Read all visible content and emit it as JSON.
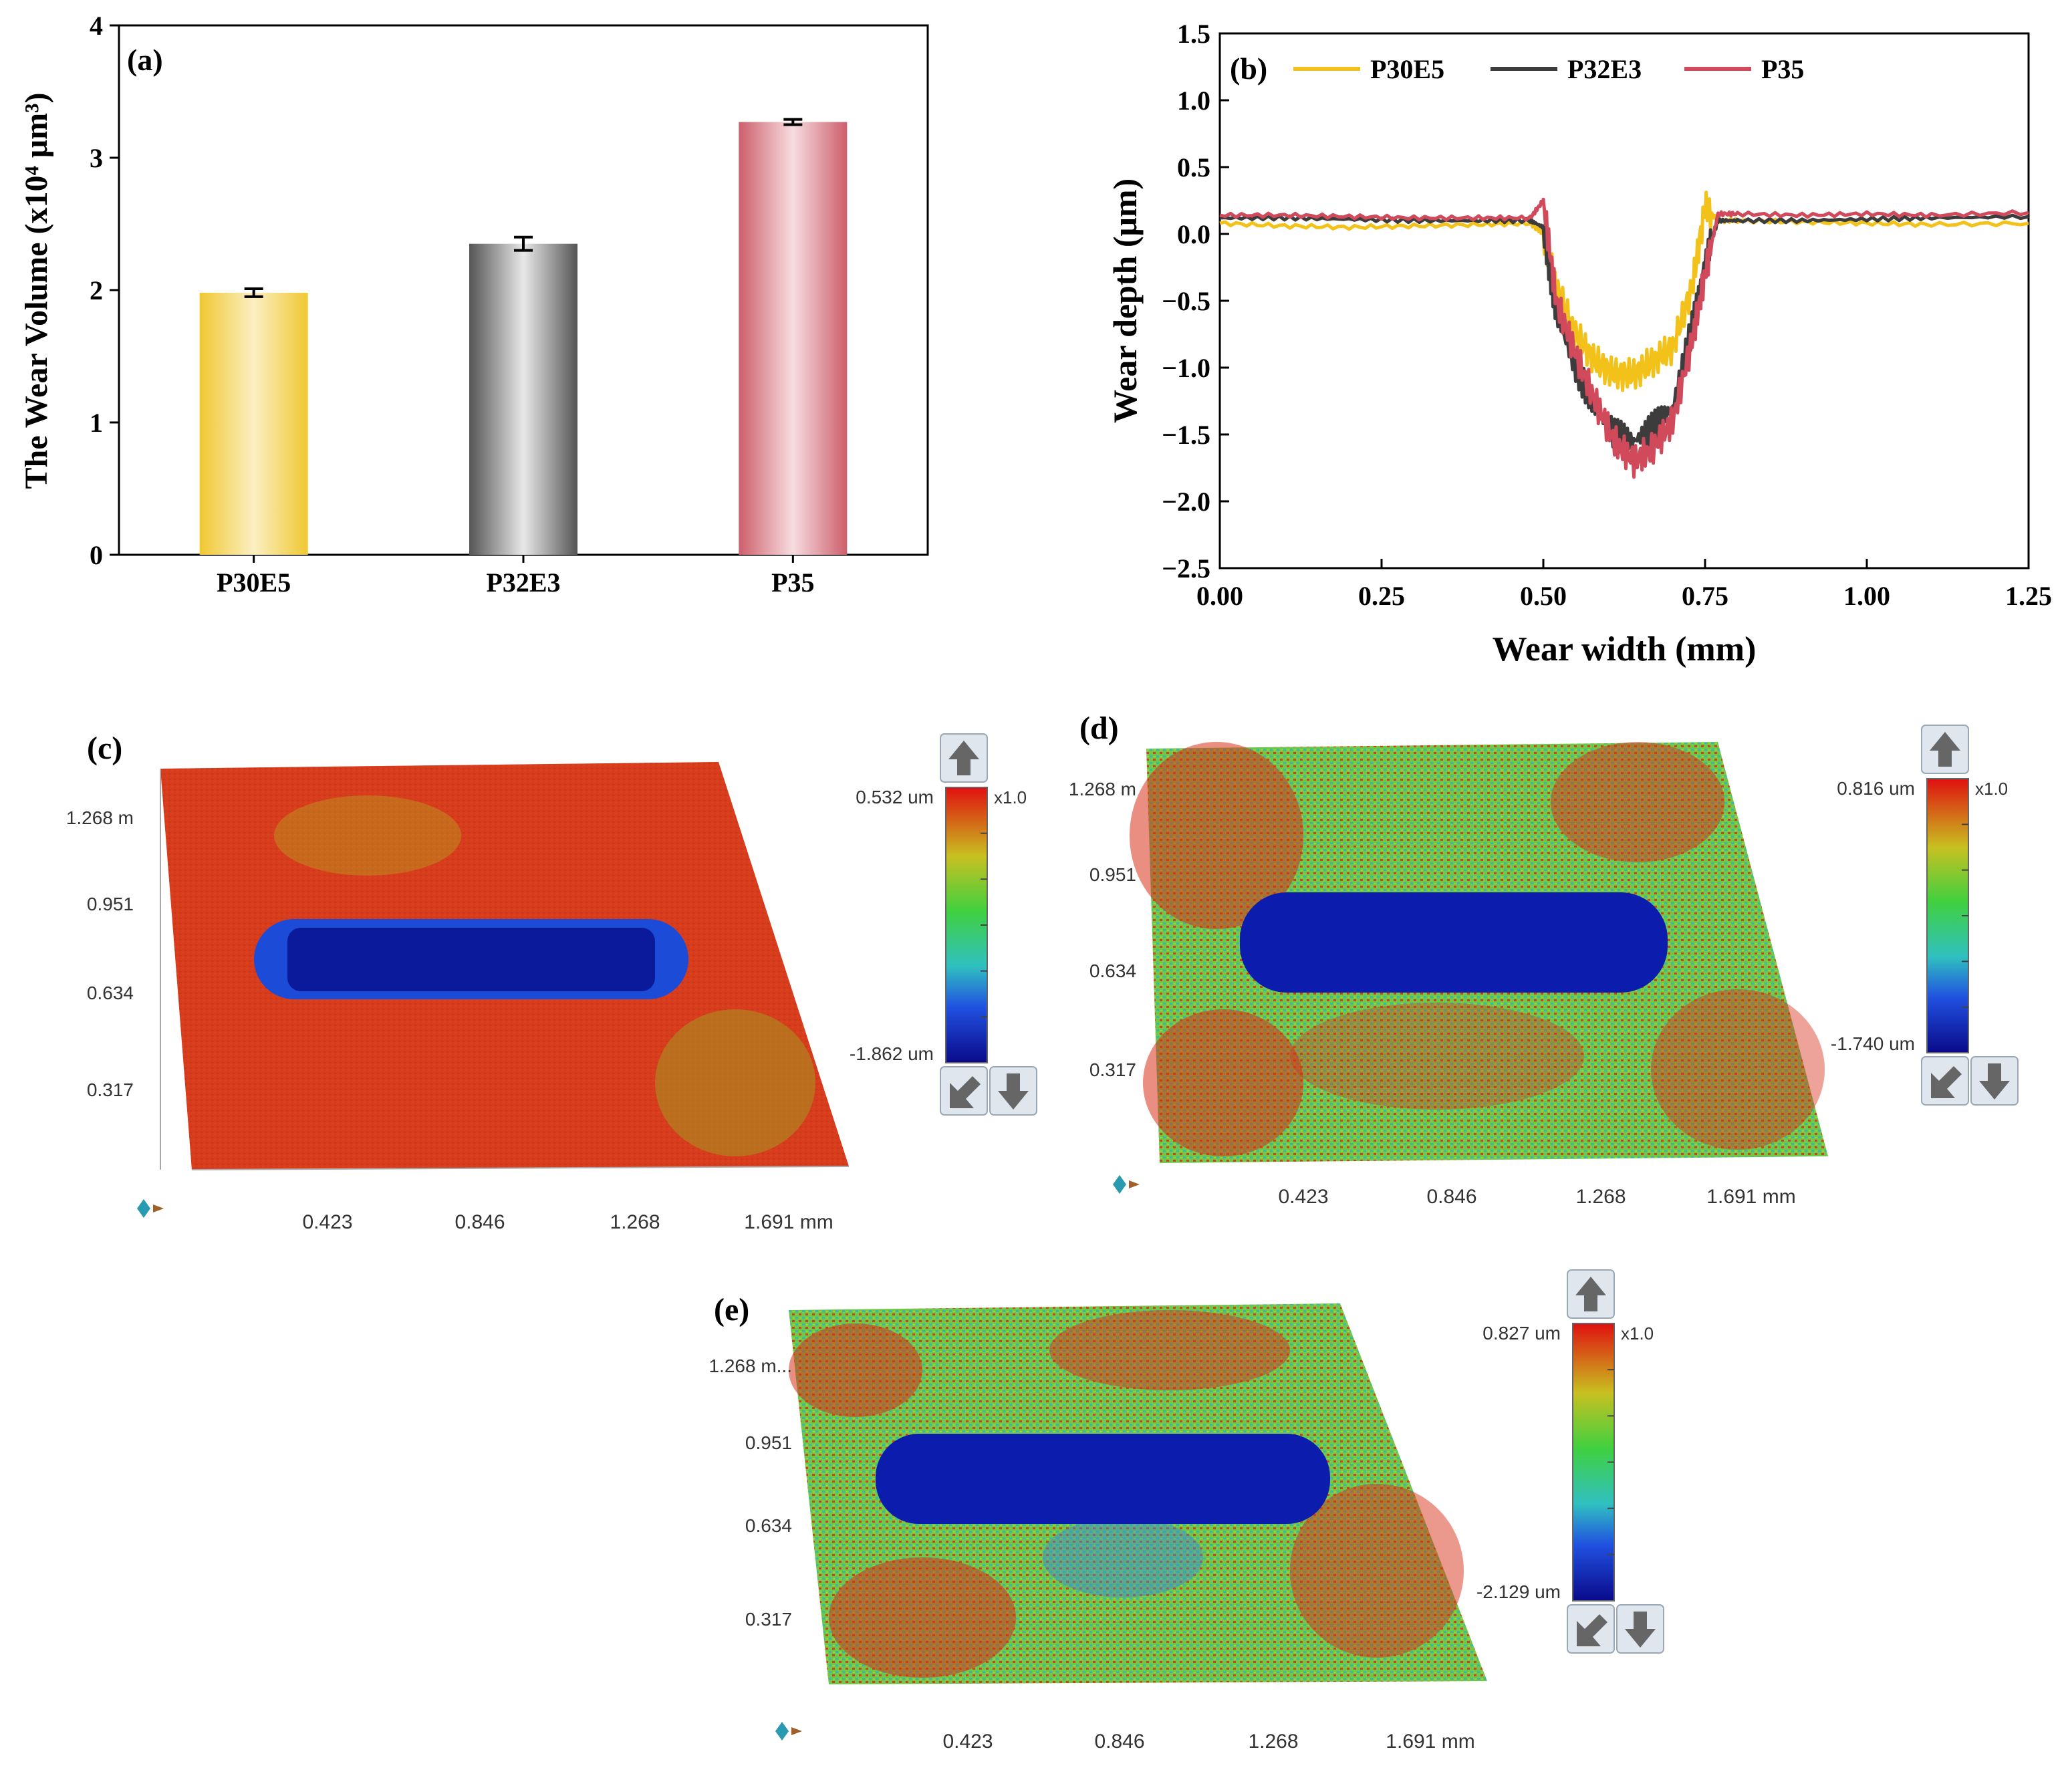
{
  "chart_data": [
    {
      "panel": "(a)",
      "type": "bar",
      "title": "",
      "xlabel": "",
      "ylabel": "The Wear Volume (x10⁴ μm³)",
      "ylim": [
        0,
        4
      ],
      "yticks": [
        "0",
        "1",
        "2",
        "3",
        "4"
      ],
      "categories": [
        "P30E5",
        "P32E3",
        "P35"
      ],
      "values": [
        1.98,
        2.35,
        3.27
      ],
      "errors": [
        0.03,
        0.05,
        0.02
      ],
      "colors": [
        "#f0c832",
        "#6e6e6e",
        "#cf5f6c"
      ]
    },
    {
      "panel": "(b)",
      "type": "line",
      "xlabel": "Wear width (mm)",
      "ylabel": "Wear depth (μm)",
      "xlim": [
        0,
        1.25
      ],
      "ylim": [
        -2.5,
        1.5
      ],
      "xticks": [
        "0.00",
        "0.25",
        "0.50",
        "0.75",
        "1.00",
        "1.25"
      ],
      "yticks": [
        "1.5",
        "1.0",
        "0.5",
        "0.0",
        "−0.5",
        "−1.0",
        "−1.5",
        "−2.0",
        "−2.5"
      ],
      "legend_position": "top",
      "series": [
        {
          "name": "P30E5",
          "color": "#f2c21a",
          "x": [
            0,
            0.1,
            0.2,
            0.3,
            0.4,
            0.48,
            0.5,
            0.52,
            0.55,
            0.58,
            0.61,
            0.64,
            0.67,
            0.7,
            0.73,
            0.75,
            0.77,
            0.8,
            0.9,
            1.0,
            1.1,
            1.25
          ],
          "y": [
            0.08,
            0.06,
            0.05,
            0.06,
            0.07,
            0.08,
            0.0,
            -0.4,
            -0.75,
            -0.95,
            -1.05,
            -1.05,
            -0.95,
            -0.85,
            -0.4,
            0.2,
            0.1,
            0.1,
            0.09,
            0.08,
            0.07,
            0.08
          ]
        },
        {
          "name": "P32E3",
          "color": "#3c3c3c",
          "x": [
            0,
            0.1,
            0.2,
            0.3,
            0.4,
            0.48,
            0.5,
            0.52,
            0.55,
            0.58,
            0.61,
            0.64,
            0.67,
            0.7,
            0.73,
            0.75,
            0.77,
            0.8,
            0.9,
            1.0,
            1.1,
            1.25
          ],
          "y": [
            0.12,
            0.12,
            0.11,
            0.1,
            0.1,
            0.1,
            0.05,
            -0.6,
            -1.0,
            -1.3,
            -1.5,
            -1.55,
            -1.45,
            -1.3,
            -0.7,
            -0.2,
            0.1,
            0.1,
            0.1,
            0.11,
            0.12,
            0.13
          ]
        },
        {
          "name": "P35",
          "color": "#d04a5c",
          "x": [
            0,
            0.1,
            0.2,
            0.3,
            0.4,
            0.48,
            0.5,
            0.52,
            0.55,
            0.58,
            0.61,
            0.64,
            0.67,
            0.7,
            0.73,
            0.75,
            0.77,
            0.8,
            0.9,
            1.0,
            1.1,
            1.25
          ],
          "y": [
            0.14,
            0.14,
            0.13,
            0.12,
            0.12,
            0.12,
            0.25,
            -0.5,
            -0.9,
            -1.25,
            -1.55,
            -1.7,
            -1.6,
            -1.4,
            -0.8,
            -0.3,
            0.15,
            0.15,
            0.14,
            0.15,
            0.14,
            0.16
          ]
        }
      ]
    }
  ],
  "maps": [
    {
      "label": "(c)",
      "yticks": [
        "1.268 m",
        "0.951",
        "0.634",
        "0.317"
      ],
      "xticks": [
        "0.423",
        "0.846",
        "1.268",
        "1.691 mm"
      ],
      "scale_max": "0.532 um",
      "scale_min": "-1.862 um",
      "zoom": "x1.0",
      "surface": "red"
    },
    {
      "label": "(d)",
      "yticks": [
        "1.268 m",
        "0.951",
        "0.634",
        "0.317"
      ],
      "xticks": [
        "0.423",
        "0.846",
        "1.268",
        "1.691 mm"
      ],
      "scale_max": "0.816 um",
      "scale_min": "-1.740 um",
      "zoom": "x1.0",
      "surface": "mixed"
    },
    {
      "label": "(e)",
      "yticks": [
        "1.268 m...",
        "0.951",
        "0.634",
        "0.317"
      ],
      "xticks": [
        "0.423",
        "0.846",
        "1.268",
        "1.691 mm"
      ],
      "scale_max": "0.827 um",
      "scale_min": "-2.129 um",
      "zoom": "x1.0",
      "surface": "mixed"
    }
  ]
}
